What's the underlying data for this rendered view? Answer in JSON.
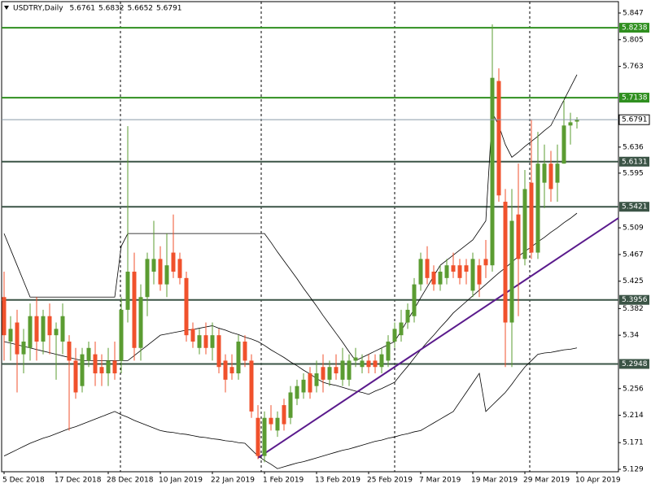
{
  "chart_data": {
    "type": "candlestick",
    "title": "USDTRY,Daily",
    "categories": [
      "5 Dec 2018",
      null,
      null,
      null,
      null,
      null,
      null,
      null,
      "17 Dec 2018",
      null,
      null,
      null,
      null,
      null,
      null,
      null,
      "28 Dec 2018",
      null,
      null,
      null,
      null,
      null,
      null,
      null,
      "10 Jan 2019",
      null,
      null,
      null,
      null,
      null,
      null,
      null,
      "22 Jan 2019",
      null,
      null,
      null,
      null,
      null,
      null,
      null,
      "1 Feb 2019",
      null,
      null,
      null,
      null,
      null,
      null,
      null,
      "13 Feb 2019",
      null,
      null,
      null,
      null,
      null,
      null,
      null,
      "25 Feb 2019",
      null,
      null,
      null,
      null,
      null,
      null,
      null,
      "7 Mar 2019",
      null,
      null,
      null,
      null,
      null,
      null,
      null,
      "19 Mar 2019",
      null,
      null,
      null,
      null,
      null,
      null,
      null,
      "29 Mar 2019",
      null,
      null,
      null,
      null,
      null,
      null,
      null,
      "10 Apr 2019"
    ],
    "series": [
      {
        "up_color": "#5b9c32",
        "down_color": "#f0512c",
        "open": [
          5.4,
          5.33,
          5.36,
          5.31,
          5.32,
          5.37,
          5.33,
          5.37,
          5.34,
          5.33,
          5.33,
          5.3,
          5.26,
          5.3,
          5.31,
          5.29,
          5.28,
          5.3,
          5.3,
          5.38,
          5.44,
          5.32,
          5.4,
          5.44,
          5.46,
          5.42,
          5.47,
          5.46,
          5.43,
          5.35,
          5.32,
          5.34,
          5.32,
          5.34,
          5.3,
          5.29,
          5.28,
          5.33,
          5.3,
          5.21,
          5.15,
          5.21,
          5.19,
          5.23,
          5.21,
          5.24,
          5.25,
          5.28,
          5.26,
          5.29,
          5.27,
          5.29,
          5.27,
          5.27,
          5.3,
          5.29,
          5.3,
          5.3,
          5.29,
          5.3,
          5.33,
          5.34,
          5.36,
          5.37,
          5.42,
          5.46,
          5.44,
          5.42,
          5.43,
          5.45,
          5.45,
          5.45,
          5.41,
          5.45,
          5.46,
          5.45,
          5.74,
          5.55,
          5.36,
          5.53,
          5.46,
          5.58,
          5.47,
          5.58,
          5.61,
          5.58,
          5.61,
          5.67,
          5.6761
        ],
        "high": [
          5.44,
          5.37,
          5.38,
          5.35,
          5.39,
          5.4,
          5.38,
          5.39,
          5.36,
          5.39,
          5.34,
          5.32,
          5.32,
          5.33,
          5.33,
          5.31,
          5.32,
          5.33,
          5.4,
          5.669,
          5.47,
          5.42,
          5.47,
          5.52,
          5.48,
          5.5,
          5.53,
          5.47,
          5.44,
          5.36,
          5.35,
          5.36,
          5.36,
          5.35,
          5.31,
          5.31,
          5.34,
          5.34,
          5.31,
          5.23,
          5.22,
          5.23,
          5.22,
          5.24,
          5.26,
          5.27,
          5.28,
          5.29,
          5.3,
          5.31,
          5.3,
          5.31,
          5.32,
          5.31,
          5.32,
          5.31,
          5.31,
          5.31,
          5.32,
          5.34,
          5.36,
          5.38,
          5.39,
          5.43,
          5.47,
          5.48,
          5.45,
          5.45,
          5.46,
          5.47,
          5.46,
          5.46,
          5.47,
          5.46,
          5.49,
          5.829,
          5.76,
          5.57,
          5.57,
          5.61,
          5.6,
          5.68,
          5.66,
          5.64,
          5.63,
          5.64,
          5.71,
          5.69,
          5.6832
        ],
        "low": [
          5.3,
          5.3,
          5.25,
          5.28,
          5.3,
          5.3,
          5.31,
          5.31,
          5.27,
          5.31,
          5.19,
          5.24,
          5.25,
          5.29,
          5.26,
          5.26,
          5.26,
          5.27,
          5.28,
          5.36,
          5.3,
          5.3,
          5.37,
          5.42,
          5.41,
          5.4,
          5.43,
          5.42,
          5.33,
          5.32,
          5.31,
          5.31,
          5.3,
          5.28,
          5.25,
          5.27,
          5.27,
          5.29,
          5.21,
          5.145,
          5.14,
          5.19,
          5.18,
          5.19,
          5.2,
          5.23,
          5.24,
          5.24,
          5.25,
          5.25,
          5.26,
          5.27,
          5.26,
          5.26,
          5.29,
          5.28,
          5.28,
          5.28,
          5.28,
          5.29,
          5.32,
          5.33,
          5.35,
          5.36,
          5.41,
          5.42,
          5.41,
          5.41,
          5.42,
          5.43,
          5.42,
          5.42,
          5.4,
          5.4,
          5.43,
          5.44,
          5.55,
          5.29,
          5.29,
          5.37,
          5.45,
          5.46,
          5.46,
          5.54,
          5.55,
          5.55,
          5.61,
          5.64,
          5.6652
        ],
        "close": [
          5.34,
          5.35,
          5.31,
          5.33,
          5.37,
          5.33,
          5.37,
          5.34,
          5.35,
          5.37,
          5.3,
          5.25,
          5.31,
          5.32,
          5.28,
          5.28,
          5.3,
          5.28,
          5.38,
          5.44,
          5.32,
          5.4,
          5.46,
          5.46,
          5.42,
          5.45,
          5.44,
          5.43,
          5.34,
          5.33,
          5.34,
          5.32,
          5.34,
          5.29,
          5.27,
          5.28,
          5.33,
          5.3,
          5.22,
          5.15,
          5.21,
          5.2,
          5.21,
          5.2,
          5.25,
          5.26,
          5.27,
          5.25,
          5.28,
          5.27,
          5.29,
          5.28,
          5.3,
          5.3,
          5.305,
          5.3,
          5.29,
          5.29,
          5.31,
          5.33,
          5.35,
          5.36,
          5.38,
          5.42,
          5.46,
          5.43,
          5.42,
          5.44,
          5.45,
          5.44,
          5.43,
          5.44,
          5.46,
          5.42,
          5.45,
          5.745,
          5.56,
          5.36,
          5.52,
          5.46,
          5.57,
          5.47,
          5.61,
          5.61,
          5.57,
          5.61,
          5.67,
          5.675,
          5.6791
        ]
      }
    ],
    "bands": {
      "color": "#000000",
      "upper": [
        5.5,
        5.475,
        5.45,
        5.425,
        5.4,
        5.4,
        5.4,
        5.4,
        5.4,
        5.4,
        5.4,
        5.4,
        5.4,
        5.4,
        5.4,
        5.4,
        5.4,
        5.4,
        5.48,
        5.5,
        5.5,
        5.5,
        5.5,
        5.5,
        5.5,
        5.5,
        5.5,
        5.5,
        5.5,
        5.5,
        5.5,
        5.5,
        5.5,
        5.5,
        5.5,
        5.5,
        5.5,
        5.5,
        5.5,
        5.5,
        5.5,
        5.486,
        5.471,
        5.457,
        5.443,
        5.429,
        5.414,
        5.4,
        5.386,
        5.371,
        5.357,
        5.343,
        5.329,
        5.314,
        5.3,
        5.305,
        5.31,
        5.315,
        5.32,
        5.325,
        5.33,
        5.347,
        5.364,
        5.381,
        5.399,
        5.416,
        5.433,
        5.45,
        5.458,
        5.466,
        5.474,
        5.482,
        5.49,
        5.505,
        5.52,
        5.69,
        5.67,
        5.64,
        5.62,
        5.628,
        5.637,
        5.645,
        5.653,
        5.662,
        5.67,
        5.69,
        5.71,
        5.73,
        5.75
      ],
      "middle": [
        5.33,
        5.3275,
        5.325,
        5.3225,
        5.32,
        5.3175,
        5.315,
        5.3125,
        5.31,
        5.3075,
        5.305,
        5.3025,
        5.3,
        5.3,
        5.3,
        5.3,
        5.3,
        5.3,
        5.3,
        5.3,
        5.308,
        5.316,
        5.324,
        5.332,
        5.34,
        5.342,
        5.344,
        5.346,
        5.348,
        5.349,
        5.351,
        5.353,
        5.355,
        5.351,
        5.348,
        5.344,
        5.341,
        5.337,
        5.334,
        5.33,
        5.324,
        5.317,
        5.311,
        5.305,
        5.298,
        5.292,
        5.285,
        5.279,
        5.272,
        5.266,
        5.263,
        5.261,
        5.258,
        5.255,
        5.252,
        5.25,
        5.247,
        5.252,
        5.256,
        5.261,
        5.266,
        5.279,
        5.291,
        5.304,
        5.317,
        5.329,
        5.34,
        5.352,
        5.363,
        5.375,
        5.384,
        5.393,
        5.402,
        5.411,
        5.42,
        5.429,
        5.438,
        5.446,
        5.455,
        5.464,
        5.472,
        5.479,
        5.487,
        5.494,
        5.502,
        5.509,
        5.517,
        5.524,
        5.532
      ],
      "lower": [
        5.15,
        5.155,
        5.16,
        5.165,
        5.17,
        5.174,
        5.178,
        5.181,
        5.185,
        5.189,
        5.193,
        5.196,
        5.2,
        5.204,
        5.208,
        5.212,
        5.216,
        5.22,
        5.215,
        5.211,
        5.206,
        5.202,
        5.198,
        5.194,
        5.19,
        5.188,
        5.187,
        5.185,
        5.184,
        5.182,
        5.18,
        5.179,
        5.177,
        5.176,
        5.174,
        5.173,
        5.171,
        5.17,
        5.16,
        5.15,
        5.143,
        5.137,
        5.13,
        5.133,
        5.136,
        5.139,
        5.141,
        5.144,
        5.147,
        5.15,
        5.153,
        5.156,
        5.159,
        5.161,
        5.164,
        5.167,
        5.17,
        5.173,
        5.175,
        5.178,
        5.18,
        5.183,
        5.185,
        5.188,
        5.19,
        5.196,
        5.202,
        5.208,
        5.214,
        5.22,
        5.235,
        5.25,
        5.265,
        5.28,
        5.22,
        5.23,
        5.24,
        5.25,
        5.263,
        5.277,
        5.29,
        5.3,
        5.31,
        5.312,
        5.313,
        5.315,
        5.317,
        5.318,
        5.32
      ]
    },
    "trendline": {
      "color": "#5a1a8c",
      "values": [
        null,
        null,
        null,
        null,
        null,
        null,
        null,
        null,
        null,
        null,
        null,
        null,
        null,
        null,
        null,
        null,
        null,
        null,
        null,
        null,
        null,
        null,
        null,
        null,
        null,
        null,
        null,
        null,
        null,
        null,
        null,
        null,
        null,
        null,
        null,
        null,
        null,
        null,
        null,
        5.147,
        null,
        null,
        null,
        null,
        null,
        null,
        null,
        null,
        null,
        null,
        null,
        null,
        null,
        null,
        null,
        null,
        null,
        null,
        null,
        null,
        null,
        null,
        null,
        null,
        null,
        null,
        null,
        null,
        null,
        null,
        null,
        null,
        null,
        null,
        null,
        null,
        null,
        null,
        null,
        null,
        null,
        null,
        null,
        null,
        null,
        null,
        null,
        null,
        5.481
      ]
    },
    "levels": [
      {
        "value": 5.8238,
        "color": "#2f8f1f"
      },
      {
        "value": 5.7138,
        "color": "#2f8f1f"
      },
      {
        "value": 5.6131,
        "color": "#3b5446"
      },
      {
        "value": 5.5421,
        "color": "#3b5446"
      },
      {
        "value": 5.3956,
        "color": "#3b5446"
      },
      {
        "value": 5.2948,
        "color": "#3b5446"
      }
    ],
    "current_price_color": "#8a9aa8",
    "ylim": [
      5.1252,
      5.8649
    ],
    "yticks": [
      5.847,
      5.805,
      5.763,
      5.636,
      5.595,
      5.509,
      5.467,
      5.425,
      5.382,
      5.34,
      5.256,
      5.214,
      5.171,
      5.129
    ]
  }
}
